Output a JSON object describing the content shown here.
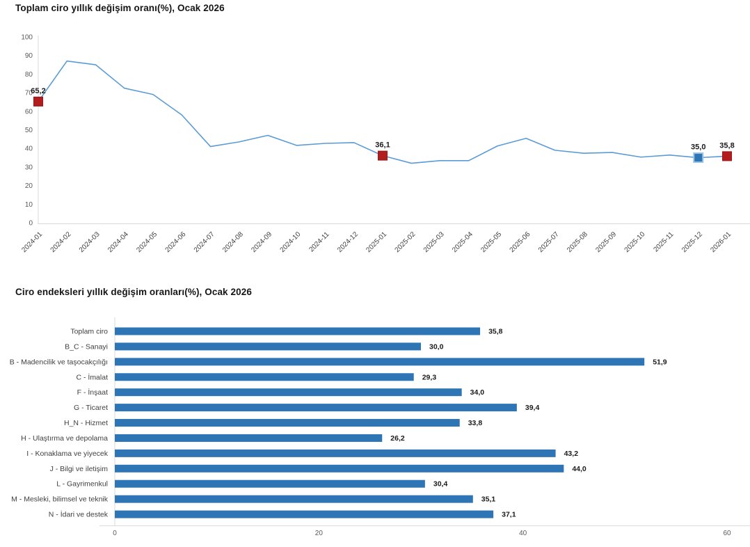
{
  "titles": {
    "line_chart": "Toplam ciro yıllık değişim oranı(%), Ocak 2026",
    "bar_chart": "Ciro endeksleri yıllık değişim oranları(%), Ocak 2026"
  },
  "colors": {
    "background": "#ffffff",
    "title_text": "#161616",
    "tick_text": "#595959",
    "category_text": "#404040",
    "annotation_text": "#1a1a1a",
    "axis_line": "#d9d9d9",
    "line": "#5b9bd5",
    "bar": "#2e75b6",
    "marker_red": "#b21d1d",
    "marker_blue": "#2e75b6",
    "marker_blue_stroke": "#9cc2e5"
  },
  "chart_data": [
    {
      "type": "line",
      "title": "Toplam ciro yıllık değişim oranı(%), Ocak 2026",
      "x": [
        "2024-01",
        "2024-02",
        "2024-03",
        "2024-04",
        "2024-05",
        "2024-06",
        "2024-07",
        "2024-08",
        "2024-09",
        "2024-10",
        "2024-11",
        "2024-12",
        "2025-01",
        "2025-02",
        "2025-03",
        "2025-04",
        "2025-05",
        "2025-06",
        "2025-07",
        "2025-08",
        "2025-09",
        "2025-10",
        "2025-11",
        "2025-12",
        "2026-01"
      ],
      "values": [
        65.2,
        87,
        85,
        72.4,
        69,
        58,
        41,
        43.5,
        47,
        41.6,
        42.7,
        43.1,
        36.1,
        32,
        33.4,
        33.4,
        41.3,
        45.4,
        39,
        37.4,
        37.8,
        35.3,
        36.4,
        35.0,
        35.8
      ],
      "ylim": [
        0,
        100
      ],
      "yticks": [
        0,
        10,
        20,
        30,
        40,
        50,
        60,
        70,
        80,
        90,
        100
      ],
      "grid": false,
      "legend": "none",
      "annotated_points": [
        {
          "x": "2024-01",
          "value": 65.2,
          "label": "65,2",
          "marker": "red-square"
        },
        {
          "x": "2025-01",
          "value": 36.1,
          "label": "36,1",
          "marker": "red-square"
        },
        {
          "x": "2025-12",
          "value": 35.0,
          "label": "35,0",
          "marker": "blue-square"
        },
        {
          "x": "2026-01",
          "value": 35.8,
          "label": "35,8",
          "marker": "red-square"
        }
      ]
    },
    {
      "type": "bar",
      "orientation": "horizontal",
      "title": "Ciro endeksleri yıllık değişim oranları(%), Ocak 2026",
      "categories": [
        "Toplam ciro",
        "B_C - Sanayi",
        "B - Madencilik ve taşocakçılığı",
        "C - İmalat",
        "F - İnşaat",
        "G - Ticaret",
        "H_N - Hizmet",
        "H - Ulaştırma ve depolama",
        "I - Konaklama ve yiyecek",
        "J - Bilgi ve iletişim",
        "L - Gayrimenkul",
        "M - Mesleki, bilimsel ve teknik",
        "N - İdari ve destek"
      ],
      "values": [
        35.8,
        30.0,
        51.9,
        29.3,
        34.0,
        39.4,
        33.8,
        26.2,
        43.2,
        44.0,
        30.4,
        35.1,
        37.1
      ],
      "value_labels": [
        "35,8",
        "30,0",
        "51,9",
        "29,3",
        "34,0",
        "39,4",
        "33,8",
        "26,2",
        "43,2",
        "44,0",
        "30,4",
        "35,1",
        "37,1"
      ],
      "xlim": [
        0,
        60
      ],
      "xticks": [
        0,
        20,
        40,
        60
      ],
      "xlabel": "",
      "ylabel": ""
    }
  ]
}
